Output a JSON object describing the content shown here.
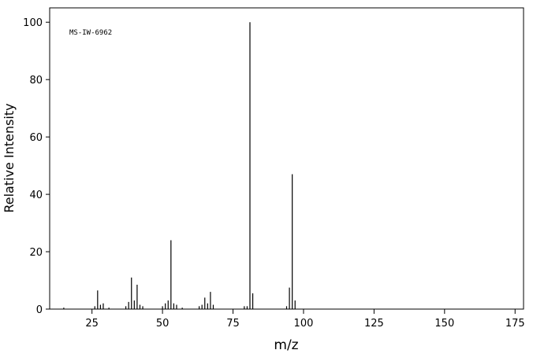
{
  "chart_data": {
    "type": "stem",
    "annotation": "MS-IW-6962",
    "xlabel": "m/z",
    "ylabel": "Relative Intensity",
    "x": [
      15,
      26,
      27,
      28,
      29,
      31,
      37,
      38,
      39,
      40,
      41,
      42,
      43,
      50,
      51,
      52,
      53,
      54,
      55,
      57,
      63,
      64,
      65,
      66,
      67,
      68,
      79,
      80,
      81,
      82,
      94,
      95,
      96,
      97
    ],
    "values": [
      0.5,
      1,
      6.5,
      1.5,
      2,
      0.5,
      1,
      2.5,
      11,
      3,
      8.5,
      1.5,
      1,
      1,
      2,
      3,
      24,
      2,
      1.5,
      0.5,
      1,
      1.5,
      4,
      2,
      6,
      1.5,
      1,
      1,
      100,
      5.5,
      1,
      7.5,
      47,
      3
    ],
    "color": "#000000",
    "xlim": [
      10,
      178
    ],
    "ylim": [
      0,
      105
    ],
    "xticks": [
      25,
      50,
      75,
      100,
      125,
      150,
      175
    ],
    "yticks": [
      0,
      20,
      40,
      60,
      80,
      100
    ]
  }
}
